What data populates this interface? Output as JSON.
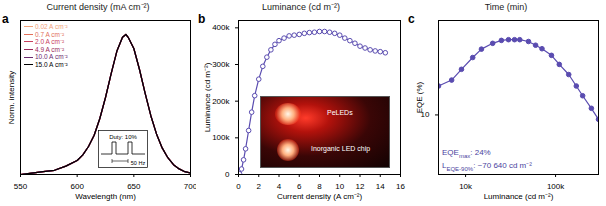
{
  "chart_data": [
    {
      "type": "line",
      "panel_label": "a",
      "title": "Current density (mA cm⁻²)",
      "x_label": "Wavelength (nm)",
      "y_label": "Norm. intensity",
      "xlim": [
        550,
        700
      ],
      "xticks": [
        550,
        600,
        650,
        700
      ],
      "ylim": [
        0,
        1.1
      ],
      "tick_labels": "x",
      "legend": "top-left",
      "x": [
        550,
        560,
        570,
        580,
        590,
        600,
        605,
        610,
        615,
        620,
        625,
        630,
        635,
        640,
        643,
        645,
        650,
        655,
        660,
        665,
        670,
        675,
        680,
        685,
        690,
        695,
        700
      ],
      "series": [
        {
          "name": "0.02 A cm⁻²",
          "color": "#f2a27a",
          "values": [
            0.0,
            0.01,
            0.02,
            0.03,
            0.06,
            0.1,
            0.14,
            0.2,
            0.28,
            0.4,
            0.55,
            0.72,
            0.88,
            0.98,
            1.0,
            0.98,
            0.9,
            0.75,
            0.58,
            0.42,
            0.29,
            0.19,
            0.12,
            0.07,
            0.04,
            0.02,
            0.01
          ]
        },
        {
          "name": "0.7 A cm⁻²",
          "color": "#e2705a",
          "values": [
            0.0,
            0.01,
            0.02,
            0.03,
            0.06,
            0.1,
            0.14,
            0.2,
            0.28,
            0.4,
            0.55,
            0.72,
            0.88,
            0.98,
            1.0,
            0.98,
            0.9,
            0.75,
            0.58,
            0.42,
            0.29,
            0.19,
            0.12,
            0.07,
            0.04,
            0.02,
            0.01
          ]
        },
        {
          "name": "2.0 A cm⁻²",
          "color": "#c8405e",
          "values": [
            0.0,
            0.01,
            0.02,
            0.03,
            0.06,
            0.1,
            0.14,
            0.2,
            0.28,
            0.4,
            0.55,
            0.72,
            0.88,
            0.98,
            1.0,
            0.98,
            0.9,
            0.75,
            0.58,
            0.42,
            0.29,
            0.19,
            0.12,
            0.07,
            0.04,
            0.02,
            0.01
          ]
        },
        {
          "name": "4.9 A cm⁻²",
          "color": "#9b2a5a",
          "values": [
            0.0,
            0.01,
            0.02,
            0.03,
            0.06,
            0.1,
            0.14,
            0.2,
            0.28,
            0.4,
            0.55,
            0.72,
            0.88,
            0.98,
            1.0,
            0.98,
            0.9,
            0.75,
            0.58,
            0.42,
            0.29,
            0.19,
            0.12,
            0.07,
            0.04,
            0.02,
            0.01
          ]
        },
        {
          "name": "10.0 A cm⁻²",
          "color": "#6a2a6e",
          "values": [
            0.0,
            0.01,
            0.02,
            0.03,
            0.06,
            0.1,
            0.14,
            0.2,
            0.28,
            0.4,
            0.55,
            0.72,
            0.88,
            0.98,
            1.0,
            0.98,
            0.9,
            0.75,
            0.58,
            0.42,
            0.29,
            0.19,
            0.12,
            0.07,
            0.04,
            0.02,
            0.01
          ]
        },
        {
          "name": "15.0 A cm⁻²",
          "color": "#000000",
          "values": [
            0.0,
            0.01,
            0.02,
            0.03,
            0.06,
            0.1,
            0.14,
            0.2,
            0.28,
            0.4,
            0.55,
            0.72,
            0.88,
            0.98,
            1.0,
            0.98,
            0.9,
            0.75,
            0.58,
            0.42,
            0.29,
            0.19,
            0.12,
            0.07,
            0.04,
            0.02,
            0.01
          ]
        }
      ],
      "annotations": [
        "Duty: 10%",
        "50 Hz"
      ]
    },
    {
      "type": "line",
      "panel_label": "b",
      "title": "Luminance (cd m⁻²)",
      "x_label": "Current density (A cm⁻²)",
      "y_label": "Luminance (cd m⁻²)",
      "xlim": [
        0,
        16
      ],
      "xticks": [
        0,
        2,
        4,
        6,
        8,
        10,
        12,
        14,
        16
      ],
      "ylim": [
        0,
        420000
      ],
      "yticks": [
        0,
        {
          "value": 100000,
          "label": "100k"
        },
        {
          "value": 200000,
          "label": "200k"
        },
        {
          "value": 300000,
          "label": "300k"
        },
        {
          "value": 400000,
          "label": "400k"
        }
      ],
      "marker": "open circle",
      "color": "#5a4cb0",
      "x": [
        0.1,
        0.3,
        0.5,
        0.7,
        1.0,
        1.3,
        1.6,
        2.0,
        2.4,
        2.8,
        3.2,
        3.6,
        4.0,
        4.5,
        5.0,
        5.5,
        6.0,
        6.5,
        7.0,
        7.5,
        8.0,
        8.5,
        9.0,
        9.5,
        10.0,
        10.5,
        11.0,
        11.5,
        12.0,
        12.5,
        13.0,
        13.5,
        14.0,
        14.5
      ],
      "values": [
        2000,
        15000,
        40000,
        70000,
        120000,
        170000,
        215000,
        260000,
        295000,
        320000,
        340000,
        355000,
        365000,
        372000,
        378000,
        380000,
        382000,
        385000,
        387000,
        388000,
        390000,
        390000,
        388000,
        385000,
        380000,
        372000,
        365000,
        358000,
        350000,
        345000,
        340000,
        337000,
        335000,
        332000
      ],
      "annotations": [
        "PeLEDs",
        "Inorganic LED chip"
      ]
    },
    {
      "type": "line",
      "panel_label": "c",
      "title": "Time (min)",
      "x_label": "Luminance (cd m⁻²)",
      "y_label": "EQE (%)",
      "log": true,
      "xlim": [
        5000,
        300000
      ],
      "xticks": [
        {
          "value": 10000,
          "label": "10k"
        },
        {
          "value": 100000,
          "label": "100k"
        }
      ],
      "ylim": [
        5,
        30
      ],
      "yticks": [
        10
      ],
      "marker": "circle",
      "color": "#5a4cb0",
      "x": [
        5000,
        7000,
        9000,
        12000,
        15000,
        20000,
        25000,
        30000,
        35000,
        40000,
        50000,
        60000,
        70640,
        90000,
        110000,
        140000,
        170000,
        200000,
        250000,
        300000
      ],
      "values": [
        14,
        15,
        17,
        19.5,
        21.5,
        23,
        23.8,
        24,
        24,
        24,
        23.5,
        22.5,
        21.6,
        20,
        18,
        16,
        14,
        12.5,
        10.8,
        9.5
      ],
      "annotations": [
        [
          "EQE",
          "max",
          ": 24%"
        ],
        [
          "L",
          "EQE-90%",
          ": ~70 640 cd m⁻²"
        ]
      ]
    }
  ]
}
